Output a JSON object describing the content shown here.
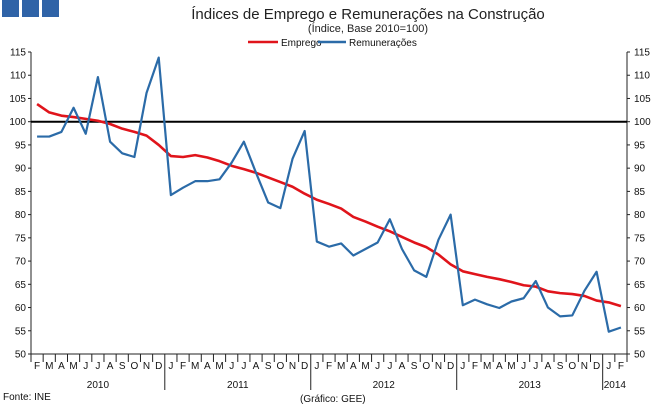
{
  "header": {
    "title": "Índices de Emprego e Remunerações na Construção",
    "subtitle": "(Índice, Base 2010=100)",
    "brand_color": "#2f63a7"
  },
  "footer": {
    "source": "Fonte: INE",
    "credit": "(Gráfico: GEE)"
  },
  "chart_data": {
    "type": "line",
    "ylim": [
      50,
      115
    ],
    "yticks": [
      50,
      55,
      60,
      65,
      70,
      75,
      80,
      85,
      90,
      95,
      100,
      105,
      110,
      115
    ],
    "reference_line": 100,
    "grid": false,
    "legend_position": "top-center",
    "x": [
      "F",
      "M",
      "A",
      "M",
      "J",
      "J",
      "A",
      "S",
      "O",
      "N",
      "D",
      "J",
      "F",
      "M",
      "A",
      "M",
      "J",
      "J",
      "A",
      "S",
      "O",
      "N",
      "D",
      "J",
      "F",
      "M",
      "A",
      "M",
      "J",
      "J",
      "A",
      "S",
      "O",
      "N",
      "D",
      "J",
      "F",
      "M",
      "A",
      "M",
      "J",
      "J",
      "A",
      "S",
      "O",
      "N",
      "D",
      "J",
      "F"
    ],
    "years": [
      {
        "label": "2010",
        "start": 0,
        "end": 10
      },
      {
        "label": "2011",
        "start": 11,
        "end": 22
      },
      {
        "label": "2012",
        "start": 23,
        "end": 34
      },
      {
        "label": "2013",
        "start": 35,
        "end": 46
      },
      {
        "label": "2014",
        "start": 47,
        "end": 48
      }
    ],
    "series": [
      {
        "name": "Emprego",
        "color": "#e0141b",
        "values": [
          103.8,
          102.0,
          101.3,
          101.0,
          100.6,
          100.2,
          99.5,
          98.5,
          97.8,
          97.0,
          95.0,
          92.6,
          92.4,
          92.8,
          92.3,
          91.5,
          90.5,
          89.8,
          89.0,
          88.0,
          87.0,
          86.0,
          84.5,
          83.2,
          82.3,
          81.3,
          79.5,
          78.5,
          77.4,
          76.4,
          75.2,
          74.0,
          73.0,
          71.4,
          69.3,
          67.8,
          67.2,
          66.6,
          66.1,
          65.5,
          64.8,
          64.5,
          63.5,
          63.1,
          62.9,
          62.5,
          61.5,
          61.1,
          60.3
        ]
      },
      {
        "name": "Remunerações",
        "color": "#2b6ba8",
        "values": [
          96.8,
          96.8,
          97.8,
          103.0,
          97.4,
          109.6,
          95.7,
          93.2,
          92.4,
          106.2,
          113.8,
          84.2,
          85.8,
          87.2,
          87.2,
          87.6,
          91.2,
          95.7,
          89.0,
          82.6,
          81.4,
          92.0,
          98.0,
          74.2,
          73.1,
          73.8,
          71.2,
          72.6,
          74.0,
          79.0,
          72.6,
          68.0,
          66.6,
          74.6,
          80.0,
          60.5,
          61.7,
          60.7,
          59.9,
          61.3,
          62.0,
          65.7,
          60.0,
          58.1,
          58.3,
          63.6,
          67.7,
          54.8,
          55.7
        ]
      }
    ]
  }
}
